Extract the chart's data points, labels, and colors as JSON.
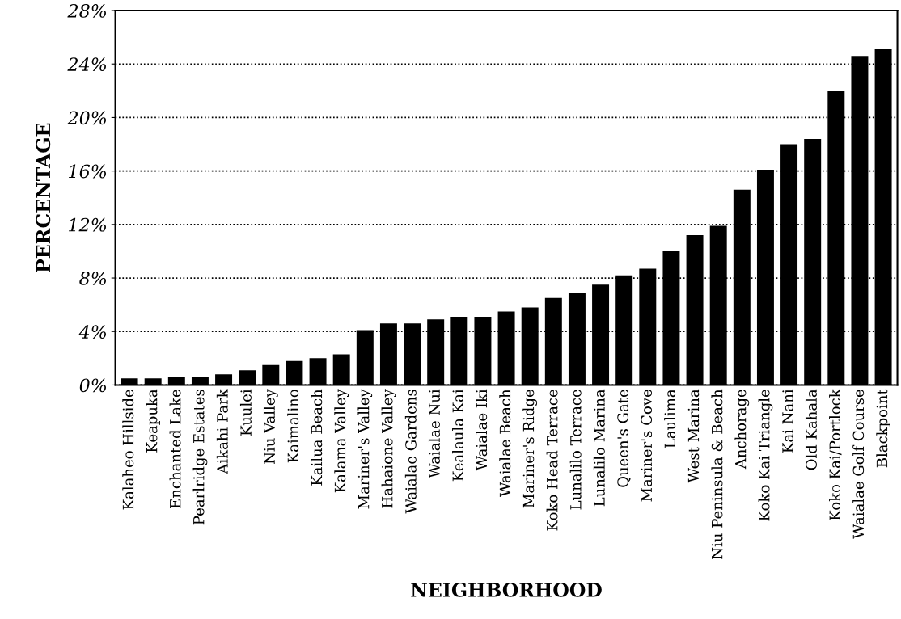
{
  "chart_data": {
    "type": "bar",
    "xlabel": "NEIGHBORHOOD",
    "ylabel": "PERCENTAGE",
    "categories": [
      "Kalaheo Hillside",
      "Keapuka",
      "Enchanted Lake",
      "Pearlridge Estates",
      "Aikahi Park",
      "Kuulei",
      "Niu Valley",
      "Kaimalino",
      "Kailua Beach",
      "Kalama Valley",
      "Mariner's Valley",
      "Hahaione Valley",
      "Waialae Gardens",
      "Waialae Nui",
      "Kealaula Kai",
      "Waialae Iki",
      "Waialae Beach",
      "Mariner's Ridge",
      "Koko Head Terrace",
      "Lunalilo Terrace",
      "Lunalilo Marina",
      "Queen's Gate",
      "Mariner's Cove",
      "Laulima",
      "West Marina",
      "Niu Peninsula & Beach",
      "Anchorage",
      "Koko Kai Triangle",
      "Kai Nani",
      "Old Kahala",
      "Koko Kai/Portlock",
      "Waialae Golf Course",
      "Blackpoint"
    ],
    "values": [
      0.5,
      0.5,
      0.6,
      0.6,
      0.8,
      1.1,
      1.5,
      1.8,
      2.0,
      2.3,
      4.1,
      4.6,
      4.6,
      4.9,
      5.1,
      5.1,
      5.5,
      5.8,
      6.5,
      6.9,
      7.5,
      8.2,
      8.7,
      10.0,
      11.2,
      11.9,
      14.6,
      16.1,
      18.0,
      18.4,
      22.0,
      24.6,
      25.1
    ],
    "color": "#000000",
    "ylim": [
      0,
      28
    ],
    "yticks": [
      {
        "value": 0,
        "label": "0%"
      },
      {
        "value": 4,
        "label": "4%"
      },
      {
        "value": 8,
        "label": "8%"
      },
      {
        "value": 12,
        "label": "12%"
      },
      {
        "value": 16,
        "label": "16%"
      },
      {
        "value": 20,
        "label": "20%"
      },
      {
        "value": 24,
        "label": "24%"
      },
      {
        "value": 28,
        "label": "28%"
      }
    ],
    "grid": "y"
  }
}
